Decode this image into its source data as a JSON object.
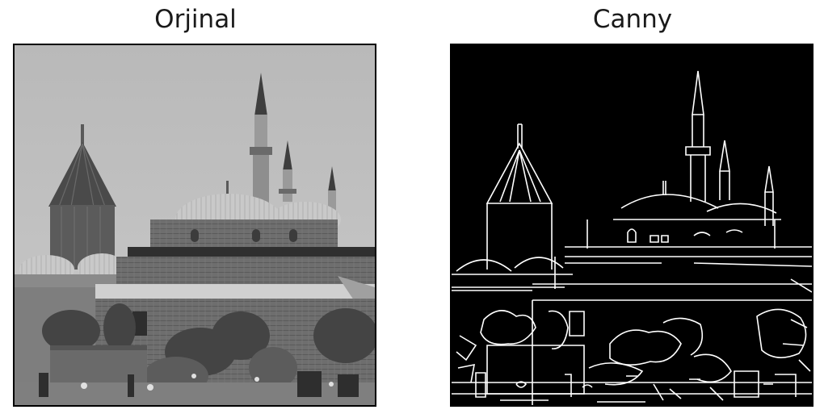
{
  "left_panel": {
    "title": "Orjinal"
  },
  "right_panel": {
    "title": "Canny"
  },
  "colors": {
    "background": "#ffffff",
    "canny_bg": "#000000",
    "edge": "#ffffff"
  }
}
